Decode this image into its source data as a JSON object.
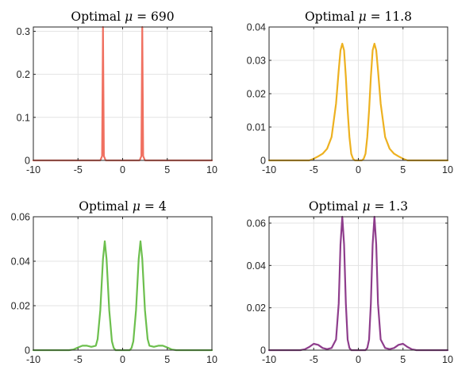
{
  "chart_data": [
    {
      "type": "line",
      "title_prefix": "Optimal ",
      "title_symbol": "μ",
      "title_suffix": " = 690",
      "xlim": [
        -10,
        10
      ],
      "ylim": [
        0,
        0.31
      ],
      "xticks": [
        -10,
        -5,
        0,
        5,
        10
      ],
      "yticks": [
        0,
        0.1,
        0.2,
        0.3
      ],
      "ytick_labels": [
        "0",
        "0.1",
        "0.2",
        "0.3"
      ],
      "grid": true,
      "color": "#F07060",
      "series": [
        {
          "x": [
            -10,
            -2.5,
            -2.3,
            -2.2,
            -2.1,
            -1.9,
            1.9,
            2.1,
            2.2,
            2.3,
            2.5,
            10
          ],
          "y": [
            0,
            0,
            0.01,
            0.31,
            0.01,
            0,
            0,
            0.01,
            0.31,
            0.01,
            0,
            0
          ]
        }
      ]
    },
    {
      "type": "line",
      "title_prefix": "Optimal ",
      "title_symbol": "μ",
      "title_suffix": " = 11.8",
      "xlim": [
        -10,
        10
      ],
      "ylim": [
        0,
        0.04
      ],
      "xticks": [
        -10,
        -5,
        0,
        5,
        10
      ],
      "yticks": [
        0,
        0.01,
        0.02,
        0.03,
        0.04
      ],
      "ytick_labels": [
        "0",
        "0.01",
        "0.02",
        "0.03",
        "0.04"
      ],
      "grid": true,
      "color": "#EDB120",
      "series": [
        {
          "x": [
            -10,
            -5.5,
            -5,
            -4.5,
            -4,
            -3.5,
            -3,
            -2.5,
            -2.2,
            -2,
            -1.8,
            -1.6,
            -1.4,
            -1.2,
            -1,
            -0.8,
            -0.6,
            -0.4,
            0,
            0.4,
            0.6,
            0.8,
            1,
            1.2,
            1.4,
            1.6,
            1.8,
            2,
            2.2,
            2.5,
            3,
            3.5,
            4,
            4.5,
            5,
            5.5,
            10
          ],
          "y": [
            0,
            0,
            0.0005,
            0.0012,
            0.002,
            0.0035,
            0.007,
            0.017,
            0.027,
            0.033,
            0.035,
            0.033,
            0.025,
            0.015,
            0.007,
            0.002,
            0.0005,
            0,
            0,
            0,
            0.0005,
            0.002,
            0.007,
            0.015,
            0.025,
            0.033,
            0.035,
            0.033,
            0.027,
            0.017,
            0.007,
            0.0035,
            0.002,
            0.0012,
            0.0005,
            0,
            0
          ]
        }
      ]
    },
    {
      "type": "line",
      "title_prefix": "Optimal ",
      "title_symbol": "μ",
      "title_suffix": " = 4",
      "xlim": [
        -10,
        10
      ],
      "ylim": [
        0,
        0.06
      ],
      "xticks": [
        -10,
        -5,
        0,
        5,
        10
      ],
      "yticks": [
        0,
        0.02,
        0.04,
        0.06
      ],
      "ytick_labels": [
        "0",
        "0.02",
        "0.04",
        "0.06"
      ],
      "grid": true,
      "color": "#6CBF4D",
      "series": [
        {
          "x": [
            -10,
            -6,
            -5.5,
            -5,
            -4.5,
            -4,
            -3.5,
            -3,
            -2.8,
            -2.5,
            -2.2,
            -2,
            -1.8,
            -1.5,
            -1.2,
            -1,
            -0.8,
            0,
            0.8,
            1,
            1.2,
            1.5,
            1.8,
            2,
            2.2,
            2.5,
            2.8,
            3,
            3.5,
            4,
            4.5,
            5,
            5.5,
            6,
            10
          ],
          "y": [
            0,
            0,
            0.0003,
            0.0012,
            0.002,
            0.002,
            0.0015,
            0.002,
            0.005,
            0.018,
            0.041,
            0.049,
            0.041,
            0.018,
            0.004,
            0.001,
            0,
            0,
            0,
            0.001,
            0.004,
            0.018,
            0.041,
            0.049,
            0.041,
            0.018,
            0.005,
            0.002,
            0.0015,
            0.002,
            0.002,
            0.0012,
            0.0003,
            0,
            0
          ]
        }
      ]
    },
    {
      "type": "line",
      "title_prefix": "Optimal ",
      "title_symbol": "μ",
      "title_suffix": " = 1.3",
      "xlim": [
        -10,
        10
      ],
      "ylim": [
        0,
        0.063
      ],
      "xticks": [
        -10,
        -5,
        0,
        5,
        10
      ],
      "yticks": [
        0,
        0.02,
        0.04,
        0.06
      ],
      "ytick_labels": [
        "0",
        "0.02",
        "0.04",
        "0.06"
      ],
      "grid": true,
      "color": "#8E3D8C",
      "series": [
        {
          "x": [
            -10,
            -6.5,
            -6,
            -5.5,
            -5,
            -4.5,
            -4,
            -3.5,
            -3,
            -2.5,
            -2.2,
            -2,
            -1.8,
            -1.6,
            -1.4,
            -1.2,
            -1,
            -0.8,
            0,
            0.8,
            1,
            1.2,
            1.4,
            1.6,
            1.8,
            2,
            2.2,
            2.5,
            3,
            3.5,
            4,
            4.5,
            5,
            5.5,
            6,
            6.5,
            10
          ],
          "y": [
            0,
            0,
            0.0004,
            0.0015,
            0.003,
            0.0025,
            0.001,
            0.0005,
            0.001,
            0.005,
            0.022,
            0.05,
            0.063,
            0.05,
            0.022,
            0.005,
            0.001,
            0,
            0,
            0,
            0.001,
            0.005,
            0.022,
            0.05,
            0.063,
            0.05,
            0.022,
            0.005,
            0.001,
            0.0005,
            0.001,
            0.0025,
            0.003,
            0.0015,
            0.0004,
            0,
            0
          ]
        }
      ]
    }
  ]
}
